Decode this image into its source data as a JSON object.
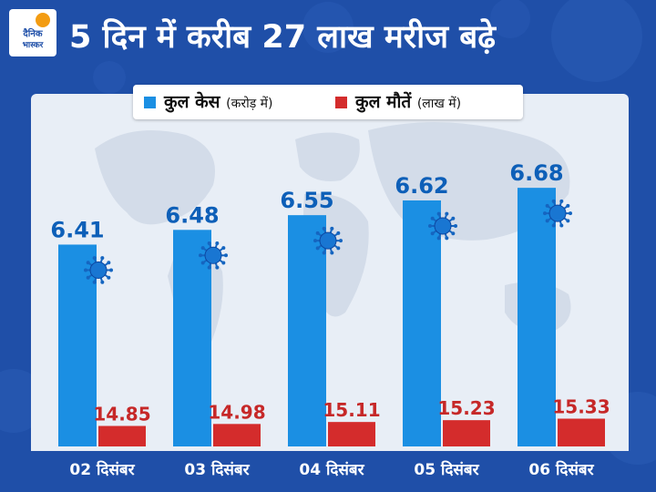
{
  "brand": {
    "line1": "दैनिक",
    "line2": "भास्कर",
    "sun_color": "#f39c12"
  },
  "title": "5 दिन में करीब 27 लाख मरीज बढ़े",
  "colors": {
    "background": "#1f4fa8",
    "panel": "#e8eef6",
    "cases": "#1b8fe3",
    "deaths": "#d42c2c"
  },
  "legend": {
    "cases": {
      "label": "कुल केस",
      "unit": "(करोड़ में)"
    },
    "deaths": {
      "label": "कुल मौतें",
      "unit": "(लाख में)"
    }
  },
  "chart_data": {
    "type": "bar",
    "title": "5 दिन में करीब 27 लाख मरीज बढ़े",
    "categories": [
      "02 दिसंबर",
      "03 दिसंबर",
      "04 दिसंबर",
      "05 दिसंबर",
      "06 दिसंबर"
    ],
    "series": [
      {
        "name": "कुल केस (करोड़ में)",
        "values": [
          6.41,
          6.48,
          6.55,
          6.62,
          6.68
        ],
        "labels": [
          "6.41",
          "6.48",
          "6.55",
          "6.62",
          "6.68"
        ],
        "color": "#1b8fe3"
      },
      {
        "name": "कुल मौतें (लाख में)",
        "values": [
          14.85,
          14.98,
          15.11,
          15.23,
          15.33
        ],
        "labels": [
          "14.85",
          "14.98",
          "15.11",
          "15.23",
          "15.33"
        ],
        "color": "#d42c2c"
      }
    ],
    "legend_position": "top-center",
    "grid": false,
    "decoration": "virus-icon"
  }
}
